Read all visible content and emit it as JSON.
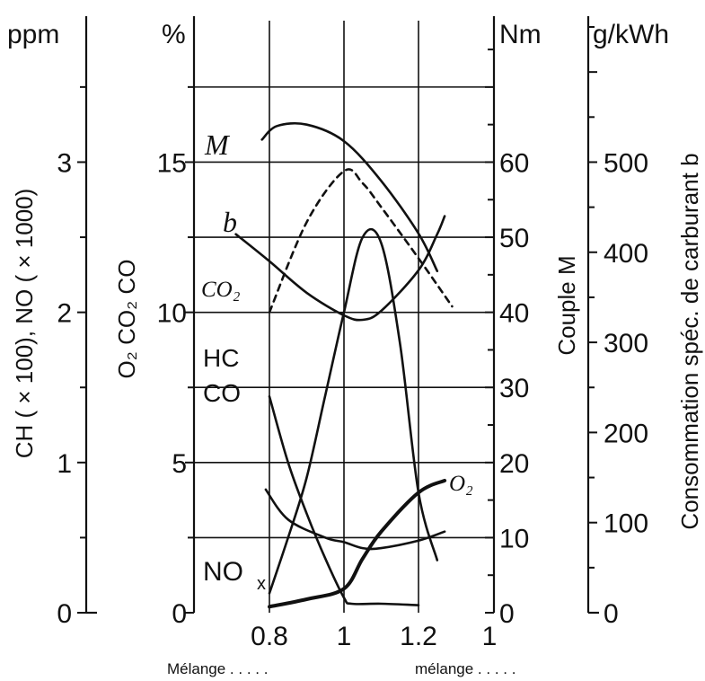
{
  "chart_data": {
    "type": "line",
    "x_ticks": [
      {
        "value": 0.8,
        "label": "0.8"
      },
      {
        "value": 1,
        "label": "1"
      },
      {
        "value": 1.2,
        "label": "1.2"
      }
    ],
    "axes": {
      "ppm": {
        "unit": "ppm",
        "label": "CH ( × 100), NO ( × 1000)",
        "range": [
          0,
          3.9
        ],
        "ticks": [
          0,
          1,
          2,
          3
        ]
      },
      "percent": {
        "unit": "%",
        "label": "O₂  CO₂  CO",
        "range": [
          0,
          19.5
        ],
        "ticks": [
          0,
          5,
          10,
          15
        ]
      },
      "nm": {
        "unit": "Nm",
        "label": "Couple M",
        "range": [
          0,
          78
        ],
        "ticks": [
          0,
          10,
          20,
          30,
          40,
          50,
          60
        ]
      },
      "gkwh": {
        "unit": "g/kWh",
        "label": "Consommation spéc. de carburant b",
        "range": [
          0,
          650
        ],
        "ticks": [
          0,
          100,
          200,
          300,
          400,
          500
        ]
      }
    },
    "series": [
      {
        "name": "M",
        "axis": "nm",
        "style": "solid",
        "points": [
          [
            0.78,
            63
          ],
          [
            0.82,
            64.8
          ],
          [
            0.9,
            65
          ],
          [
            1.0,
            62.8
          ],
          [
            1.1,
            57.5
          ],
          [
            1.2,
            50.5
          ],
          [
            1.25,
            45.5
          ]
        ]
      },
      {
        "name": "b",
        "axis": "gkwh",
        "style": "solid",
        "points": [
          [
            0.71,
            420
          ],
          [
            0.8,
            390
          ],
          [
            0.9,
            355
          ],
          [
            1.0,
            330
          ],
          [
            1.05,
            325
          ],
          [
            1.1,
            335
          ],
          [
            1.2,
            380
          ],
          [
            1.25,
            420
          ],
          [
            1.27,
            440
          ]
        ]
      },
      {
        "name": "CO₂",
        "axis": "percent",
        "style": "dashed",
        "points": [
          [
            0.8,
            10.0
          ],
          [
            0.9,
            13.0
          ],
          [
            1.0,
            14.7
          ],
          [
            1.05,
            14.3
          ],
          [
            1.1,
            13.5
          ],
          [
            1.2,
            11.8
          ],
          [
            1.29,
            10.2
          ]
        ]
      },
      {
        "name": "HC",
        "axis": "ppm",
        "style": "solid",
        "points": [
          [
            0.79,
            0.82
          ],
          [
            0.85,
            0.62
          ],
          [
            0.95,
            0.5
          ],
          [
            1.0,
            0.47
          ],
          [
            1.05,
            0.43
          ],
          [
            1.1,
            0.43
          ],
          [
            1.2,
            0.48
          ],
          [
            1.27,
            0.54
          ]
        ]
      },
      {
        "name": "CO",
        "axis": "percent",
        "style": "solid",
        "points": [
          [
            0.8,
            7.2
          ],
          [
            0.85,
            5.0
          ],
          [
            0.9,
            3.3
          ],
          [
            0.95,
            1.8
          ],
          [
            1.0,
            0.5
          ],
          [
            1.02,
            0.3
          ],
          [
            1.1,
            0.3
          ],
          [
            1.2,
            0.25
          ]
        ]
      },
      {
        "name": "NOₓ",
        "axis": "ppm",
        "style": "solid",
        "points": [
          [
            0.8,
            0.13
          ],
          [
            0.85,
            0.5
          ],
          [
            0.9,
            0.9
          ],
          [
            0.95,
            1.45
          ],
          [
            1.0,
            2.0
          ],
          [
            1.05,
            2.5
          ],
          [
            1.1,
            2.46
          ],
          [
            1.15,
            1.8
          ],
          [
            1.2,
            0.8
          ],
          [
            1.25,
            0.35
          ]
        ]
      },
      {
        "name": "O₂",
        "axis": "percent",
        "style": "solid",
        "points": [
          [
            0.8,
            0.2
          ],
          [
            0.9,
            0.45
          ],
          [
            1.0,
            0.8
          ],
          [
            1.05,
            1.8
          ],
          [
            1.1,
            2.7
          ],
          [
            1.2,
            4.0
          ],
          [
            1.27,
            4.4
          ]
        ]
      }
    ],
    "labels": {
      "M": "M",
      "b": "b",
      "CO2": "CO₂",
      "HC": "HC",
      "CO": "CO",
      "NOx": "NO",
      "NOx_sub": "x",
      "O2": "O₂",
      "partial_tick": "1"
    }
  },
  "footer": {
    "left": "Mélange . . . . .",
    "right": "mélange . . . . ."
  }
}
